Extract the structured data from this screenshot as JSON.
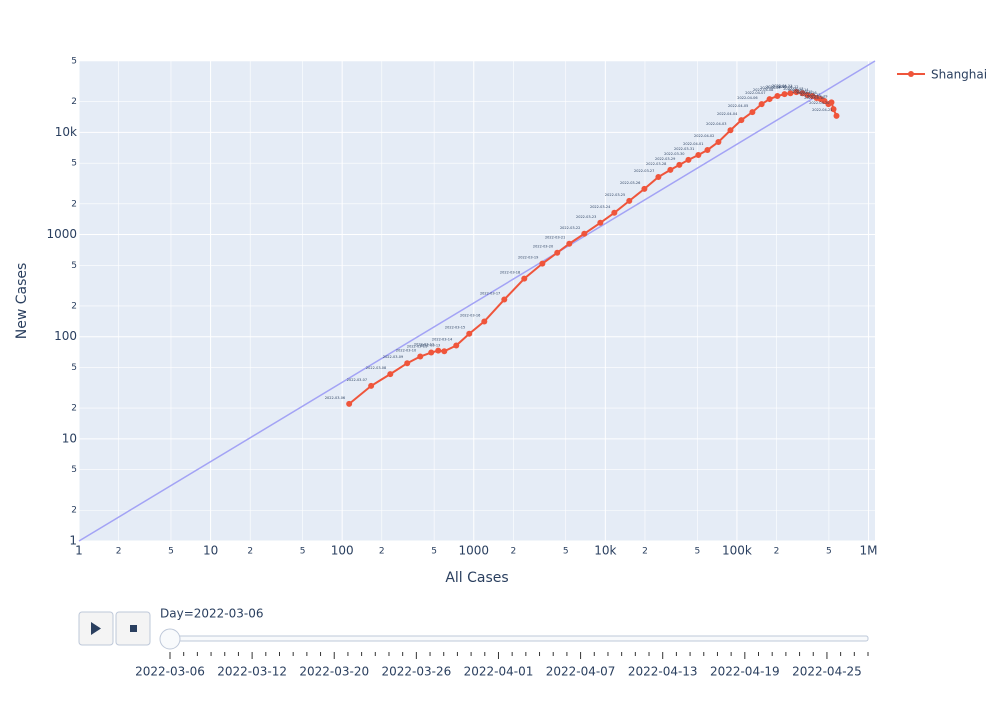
{
  "chart_data": {
    "type": "line",
    "xscale": "log",
    "yscale": "log",
    "grid": true,
    "x_label": "All Cases",
    "y_label": "New Cases",
    "xlim": [
      1,
      1120000
    ],
    "ylim": [
      1,
      50000
    ],
    "xticks": [
      1,
      2,
      5,
      10,
      {
        "value": 20,
        "label": "2"
      },
      {
        "value": 50,
        "label": "5"
      },
      100,
      {
        "value": 200,
        "label": "2"
      },
      {
        "value": 500,
        "label": "5"
      },
      1000,
      {
        "value": 2000,
        "label": "2"
      },
      {
        "value": 5000,
        "label": "5"
      },
      {
        "value": 10000,
        "label": "10k"
      },
      {
        "value": 20000,
        "label": "2"
      },
      {
        "value": 50000,
        "label": "5"
      },
      {
        "value": 100000,
        "label": "100k"
      },
      {
        "value": 200000,
        "label": "2"
      },
      {
        "value": 500000,
        "label": "5"
      },
      {
        "value": 1000000,
        "label": "1M"
      }
    ],
    "yticks": [
      1,
      2,
      5,
      10,
      {
        "value": 20,
        "label": "2"
      },
      {
        "value": 50,
        "label": "5"
      },
      100,
      {
        "value": 200,
        "label": "2"
      },
      {
        "value": 500,
        "label": "5"
      },
      1000,
      {
        "value": 2000,
        "label": "2"
      },
      {
        "value": 5000,
        "label": "5"
      },
      {
        "value": 10000,
        "label": "10k"
      },
      {
        "value": 20000,
        "label": "2"
      },
      {
        "value": 50000,
        "label": "5"
      }
    ],
    "reference_line": {
      "x": [
        1,
        1120000
      ],
      "y": [
        1,
        50000
      ],
      "color": "#a3a3f5"
    },
    "x": [
      113,
      166,
      232,
      312,
      392,
      475,
      537,
      597,
      736,
      924,
      1203,
      1706,
      2420,
      3320,
      4310,
      5320,
      6920,
      9160,
      11700,
      15200,
      19800,
      25300,
      31200,
      36500,
      42800,
      50900,
      59700,
      72300,
      89300,
      108000,
      131000,
      154000,
      177000,
      203000,
      230000,
      255000,
      283000,
      315000,
      344000,
      375000,
      403000,
      432000,
      463000,
      496000,
      523000,
      542000,
      571000
    ],
    "series": [
      {
        "name": "Shanghai",
        "color": "#EF553B",
        "values": [
          22,
          33,
          43,
          55,
          64,
          70,
          73,
          72,
          82,
          107,
          141,
          231,
          370,
          519,
          664,
          813,
          1018,
          1303,
          1633,
          2137,
          2800,
          3660,
          4300,
          4810,
          5380,
          6010,
          6730,
          8060,
          10500,
          13200,
          15800,
          18900,
          21200,
          22700,
          23700,
          24200,
          24800,
          24200,
          23200,
          22700,
          21700,
          21200,
          20300,
          18900,
          19700,
          16900,
          14500
        ],
        "text": [
          "2022-03-06",
          "2022-03-07",
          "2022-03-08",
          "2022-03-09",
          "2022-03-10",
          "2022-03-11",
          "2022-03-12",
          "2022-03-13",
          "2022-03-14",
          "2022-03-15",
          "2022-03-16",
          "2022-03-17",
          "2022-03-18",
          "2022-03-19",
          "2022-03-20",
          "2022-03-21",
          "2022-03-22",
          "2022-03-23",
          "2022-03-24",
          "2022-03-25",
          "2022-03-26",
          "2022-03-27",
          "2022-03-28",
          "2022-03-29",
          "2022-03-30",
          "2022-03-31",
          "2022-04-01",
          "2022-04-02",
          "2022-04-03",
          "2022-04-04",
          "2022-04-05",
          "2022-04-06",
          "2022-04-07",
          "2022-04-08",
          "2022-04-09",
          "2022-04-10",
          "2022-04-11",
          "2022-04-12",
          "2022-04-13",
          "2022-04-14",
          "2022-04-15",
          "2022-04-16",
          "2022-04-17",
          "2022-04-18",
          "2022-04-19",
          "2022-04-20",
          "2022-04-21"
        ]
      }
    ]
  },
  "slider": {
    "current_label": "Day=2022-03-06",
    "tick_labels": [
      "2022-03-06",
      "2022-03-12",
      "2022-03-20",
      "2022-03-26",
      "2022-04-01",
      "2022-04-07",
      "2022-04-13",
      "2022-04-19",
      "2022-04-25"
    ]
  }
}
